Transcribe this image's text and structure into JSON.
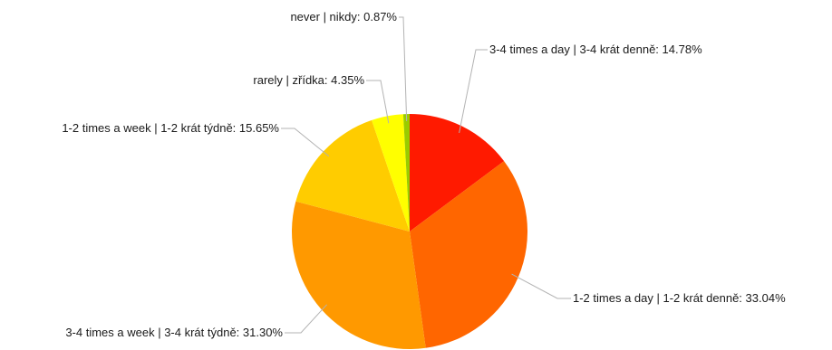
{
  "chart_data": {
    "type": "pie",
    "title": "",
    "slices": [
      {
        "label": "3-4 times a day | 3-4 krát denně",
        "value": 14.78,
        "color": "#ff1a00"
      },
      {
        "label": "1-2 times a day | 1-2 krát denně",
        "value": 33.04,
        "color": "#ff6600"
      },
      {
        "label": "3-4 times a week | 3-4 krát týdně",
        "value": 31.3,
        "color": "#ff9900"
      },
      {
        "label": "1-2 times a week | 1-2 krát týdně",
        "value": 15.65,
        "color": "#ffcc00"
      },
      {
        "label": "rarely | zřídka",
        "value": 4.35,
        "color": "#ffff00"
      },
      {
        "label": "never | nikdy",
        "value": 0.87,
        "color": "#99cc00"
      }
    ],
    "value_suffix": "%",
    "legend": "none",
    "labels": "outside with leader lines"
  }
}
